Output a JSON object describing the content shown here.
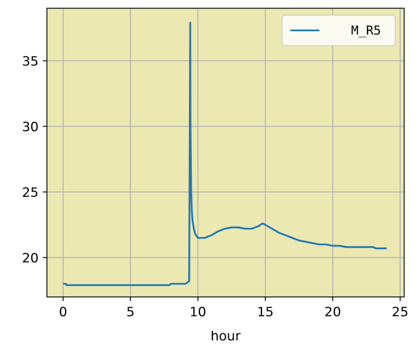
{
  "chart_data": {
    "type": "line",
    "xlabel": "hour",
    "ylabel": "",
    "xlim": [
      -1.2,
      25.3
    ],
    "ylim": [
      17.0,
      39.0
    ],
    "xticks": [
      0,
      5,
      10,
      15,
      20,
      25
    ],
    "yticks": [
      20,
      25,
      30,
      35
    ],
    "grid": true,
    "legend_position": "top-right",
    "background_color": "#ebe8b2",
    "series": [
      {
        "name": "M_R5",
        "color": "#1f77b4",
        "x": [
          0.0,
          0.2,
          0.25,
          2,
          4,
          6,
          7.9,
          8.0,
          8.5,
          9.1,
          9.2,
          9.35,
          9.4,
          9.43,
          9.45,
          9.5,
          9.55,
          9.6,
          9.7,
          9.8,
          10.0,
          10.5,
          11.0,
          11.5,
          12.0,
          12.5,
          13.0,
          13.5,
          14.0,
          14.5,
          14.8,
          15.0,
          15.5,
          16.0,
          16.5,
          17.0,
          17.5,
          18.0,
          18.5,
          19.0,
          19.5,
          20.0,
          20.5,
          21.0,
          21.5,
          22.0,
          22.5,
          23.0,
          23.2,
          23.5,
          24.0
        ],
        "y": [
          18.0,
          18.0,
          17.9,
          17.9,
          17.9,
          17.9,
          17.9,
          18.0,
          18.0,
          18.0,
          18.1,
          18.2,
          30.0,
          37.9,
          30.0,
          25.0,
          23.5,
          22.8,
          22.2,
          21.8,
          21.5,
          21.5,
          21.7,
          22.0,
          22.2,
          22.3,
          22.3,
          22.2,
          22.2,
          22.4,
          22.6,
          22.5,
          22.2,
          21.9,
          21.7,
          21.5,
          21.3,
          21.2,
          21.1,
          21.0,
          21.0,
          20.9,
          20.9,
          20.8,
          20.8,
          20.8,
          20.8,
          20.8,
          20.7,
          20.7,
          20.7
        ]
      }
    ]
  }
}
